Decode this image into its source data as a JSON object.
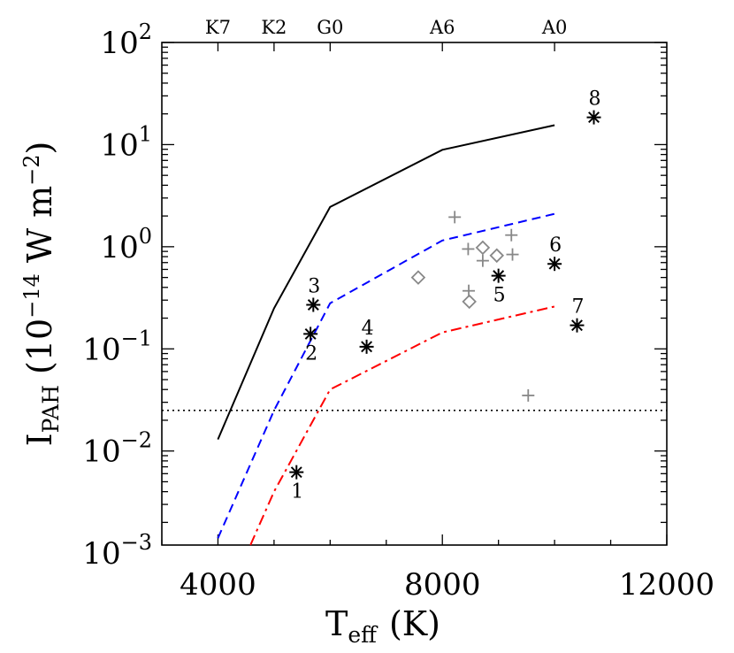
{
  "chart_data": {
    "type": "line",
    "x_scale": "linear",
    "y_scale": "log",
    "xlim": [
      3000,
      12000
    ],
    "ylim": [
      0.0012,
      100
    ],
    "xlabel": {
      "main": "T",
      "sub": "eff",
      "tail": "(K)"
    },
    "ylabel": {
      "main": "I",
      "sub": "PAH",
      "tail": "(10",
      "sup1": "−14",
      "mid": " W m",
      "sup2": "−2",
      "end": ")"
    },
    "x_ticks": [
      {
        "value": 4000,
        "label": "4000"
      },
      {
        "value": 8000,
        "label": "8000"
      },
      {
        "value": 12000,
        "label": "12000"
      }
    ],
    "y_ticks": [
      {
        "value": 0.001,
        "base": "10",
        "exp": "−3"
      },
      {
        "value": 0.01,
        "base": "10",
        "exp": "−2"
      },
      {
        "value": 0.1,
        "base": "10",
        "exp": "−1"
      },
      {
        "value": 1,
        "base": "10",
        "exp": "0"
      },
      {
        "value": 10,
        "base": "10",
        "exp": "1"
      },
      {
        "value": 100,
        "base": "10",
        "exp": "2"
      }
    ],
    "top_axis_ticks": [
      {
        "value": 4000,
        "label": "K7"
      },
      {
        "value": 5000,
        "label": "K2"
      },
      {
        "value": 6000,
        "label": "G0"
      },
      {
        "value": 8000,
        "label": "A6"
      },
      {
        "value": 10000,
        "label": "A0"
      }
    ],
    "series": [
      {
        "style": "solid",
        "color": "#000000",
        "x": [
          4000,
          5000,
          6000,
          8000,
          10000
        ],
        "y": [
          0.013,
          0.25,
          2.45,
          8.9,
          15.5
        ]
      },
      {
        "style": "dashed",
        "color": "#0000ff",
        "x": [
          4000,
          5000,
          6000,
          8000,
          10000
        ],
        "y": [
          0.0014,
          0.025,
          0.28,
          1.15,
          2.1
        ]
      },
      {
        "style": "dashdot",
        "color": "#ff0000",
        "x": [
          4580,
          5000,
          6000,
          8000,
          10000
        ],
        "y": [
          0.0012,
          0.004,
          0.04,
          0.145,
          0.26
        ]
      }
    ],
    "threshold": {
      "style": "dotted",
      "color": "#000000",
      "y": 0.025
    },
    "stars": [
      {
        "label": "1",
        "x": 5400,
        "y": 0.0062,
        "label_pos": "below"
      },
      {
        "label": "2",
        "x": 5650,
        "y": 0.14,
        "label_pos": "below"
      },
      {
        "label": "3",
        "x": 5700,
        "y": 0.27,
        "label_pos": "above"
      },
      {
        "label": "4",
        "x": 6650,
        "y": 0.105,
        "label_pos": "above"
      },
      {
        "label": "5",
        "x": 9000,
        "y": 0.52,
        "label_pos": "below"
      },
      {
        "label": "6",
        "x": 10000,
        "y": 0.68,
        "label_pos": "above"
      },
      {
        "label": "7",
        "x": 10400,
        "y": 0.17,
        "label_pos": "above"
      },
      {
        "label": "8",
        "x": 10700,
        "y": 18.5,
        "label_pos": "above"
      }
    ],
    "gray_plus": [
      {
        "x": 8220,
        "y": 1.95
      },
      {
        "x": 8460,
        "y": 0.95
      },
      {
        "x": 8720,
        "y": 0.73
      },
      {
        "x": 9230,
        "y": 1.3
      },
      {
        "x": 9250,
        "y": 0.84
      },
      {
        "x": 8470,
        "y": 0.37
      },
      {
        "x": 9530,
        "y": 0.035
      }
    ],
    "gray_diamonds": [
      {
        "x": 7570,
        "y": 0.5
      },
      {
        "x": 8720,
        "y": 0.98
      },
      {
        "x": 8970,
        "y": 0.82
      },
      {
        "x": 8480,
        "y": 0.29
      }
    ],
    "gray_color": "#888888"
  }
}
